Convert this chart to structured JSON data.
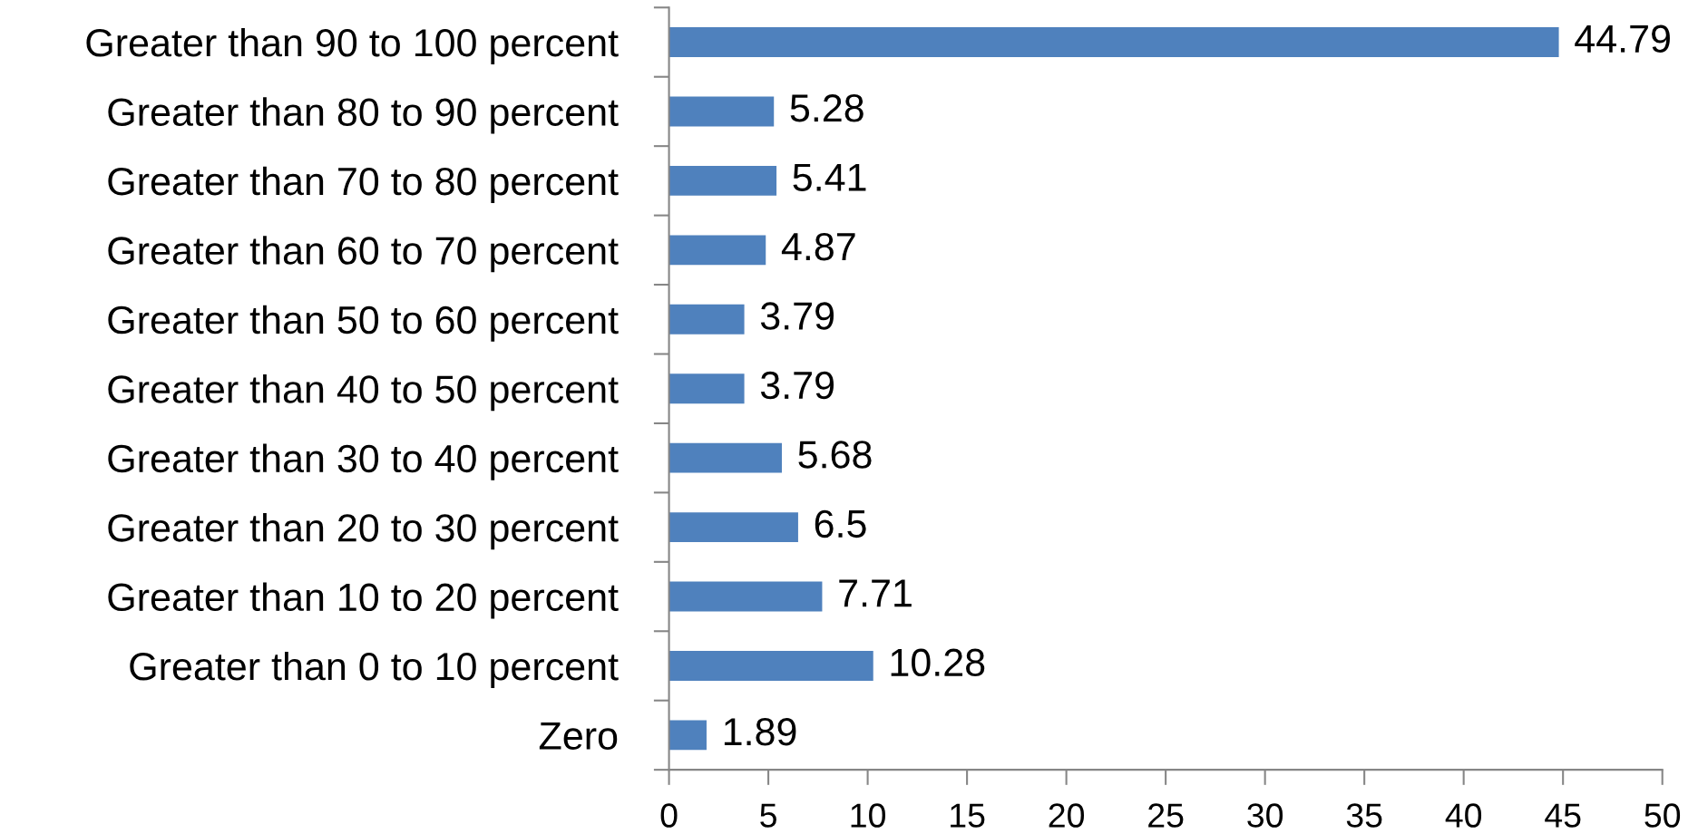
{
  "chart_data": {
    "type": "bar",
    "orientation": "horizontal",
    "categories": [
      "Greater than 90 to 100 percent",
      "Greater than 80 to 90 percent",
      "Greater than 70 to 80 percent",
      "Greater than 60 to 70 percent",
      "Greater than 50 to 60 percent",
      "Greater than 40 to 50 percent",
      "Greater than 30 to 40 percent",
      "Greater than 20 to 30 percent",
      "Greater than 10 to 20 percent",
      "Greater than 0 to 10 percent",
      "Zero"
    ],
    "values": [
      44.79,
      5.28,
      5.41,
      4.87,
      3.79,
      3.79,
      5.68,
      6.5,
      7.71,
      10.28,
      1.89
    ],
    "color": "#4f81bd",
    "xlim": [
      0,
      50
    ],
    "xticks": [
      0,
      5,
      10,
      15,
      20,
      25,
      30,
      35,
      40,
      45,
      50
    ],
    "grid": false,
    "legend": false,
    "data_labels": true
  }
}
